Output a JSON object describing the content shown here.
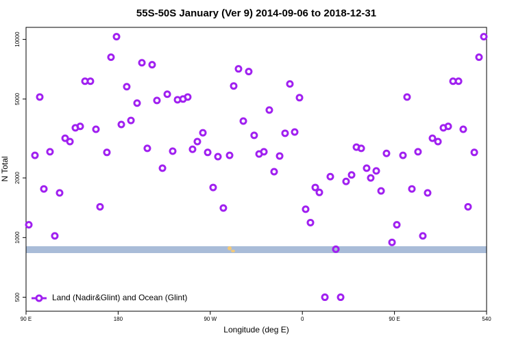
{
  "chart_data": {
    "type": "scatter",
    "title": "55S-50S January (Ver 9)   2014-09-06 to 2018-12-31",
    "x_label": "Longitude (deg E)",
    "y_label": "N Total",
    "log_y": true,
    "legend": "lower left",
    "xlim": [
      90,
      540
    ],
    "xticks": [
      {
        "value": 90,
        "label": "90 E"
      },
      180,
      {
        "value": 270,
        "label": "90 W"
      },
      {
        "value": 360,
        "label": "0"
      },
      {
        "value": 450,
        "label": "90 E"
      },
      540
    ],
    "ylim": [
      425,
      11500
    ],
    "yticks": [
      500,
      1000,
      2000,
      5000,
      10000
    ],
    "series": [
      {
        "name": "Land (Nadir&Glint) and Ocean (Glint)",
        "color": "#a020f0",
        "x": [
          92.7,
          98.7,
          103.4,
          107.4,
          113.4,
          118.1,
          122.8,
          128.2,
          132.9,
          138.2,
          142.9,
          147.6,
          152.9,
          158.3,
          162.3,
          169.0,
          173.0,
          178.4,
          183.1,
          188.4,
          192.5,
          198.5,
          203.2,
          208.5,
          213.2,
          217.9,
          223.3,
          228.0,
          233.3,
          238.0,
          243.4,
          248.0,
          252.7,
          257.4,
          262.8,
          267.5,
          272.8,
          277.5,
          282.8,
          288.9,
          292.9,
          297.6,
          302.3,
          307.6,
          312.9,
          317.7,
          322.4,
          327.7,
          332.4,
          337.8,
          343.1,
          347.8,
          352.5,
          357.2,
          363.2,
          367.9,
          372.6,
          376.6,
          382.0,
          387.3,
          392.7,
          397.4,
          402.7,
          408.1,
          412.8,
          417.5,
          422.8,
          426.8,
          432.2,
          436.9,
          442.2,
          447.6,
          452.3,
          458.3,
          462.3,
          467.0,
          473.0,
          477.7,
          482.4,
          487.1,
          492.5,
          497.8,
          502.5,
          507.2,
          512.6,
          517.2,
          521.9,
          528.0,
          532.6,
          537.3
        ],
        "values": [
          1160,
          2600,
          5120,
          1760,
          2710,
          1020,
          1680,
          3170,
          3050,
          3580,
          3640,
          6150,
          6150,
          3520,
          1430,
          2690,
          8130,
          10320,
          3720,
          5770,
          3900,
          4770,
          7620,
          2820,
          7450,
          4920,
          2240,
          5290,
          2730,
          4960,
          5000,
          5120,
          2790,
          3050,
          3380,
          2690,
          1790,
          2560,
          1410,
          2600,
          5820,
          7100,
          3870,
          6880,
          3280,
          2640,
          2710,
          4400,
          2150,
          2580,
          3360,
          5960,
          3410,
          5080,
          1390,
          1190,
          1790,
          1690,
          500,
          2030,
          873,
          500,
          1920,
          2070,
          2860,
          2820,
          2240,
          2000,
          2170,
          1720,
          2660,
          946,
          1160,
          2600,
          5120,
          1760,
          2710,
          1020,
          1680,
          3170,
          3050,
          3580,
          3640,
          6150,
          6150,
          3520,
          1430,
          2690,
          8130,
          10320
        ]
      }
    ]
  }
}
